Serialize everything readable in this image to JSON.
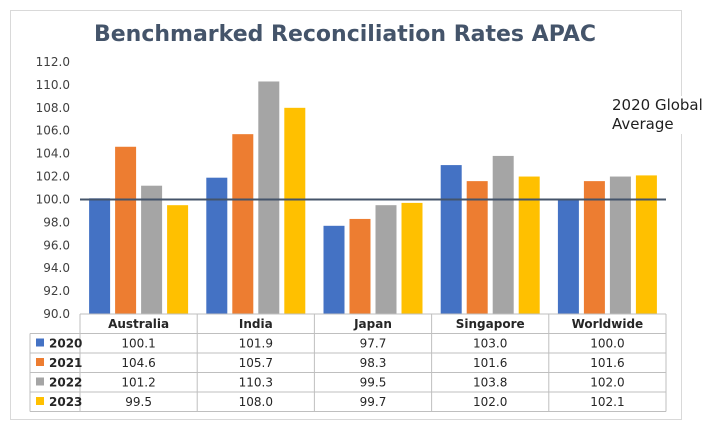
{
  "chart_data": {
    "type": "bar",
    "title": "Benchmarked Reconciliation Rates APAC",
    "categories": [
      "Australia",
      "India",
      "Japan",
      "Singapore",
      "Worldwide"
    ],
    "series": [
      {
        "name": "2020",
        "color": "#4472c4",
        "values": [
          100.1,
          101.9,
          97.7,
          103.0,
          100.0
        ],
        "labels": [
          "100.1",
          "101.9",
          "97.7",
          "103.0",
          "100.0"
        ]
      },
      {
        "name": "2021",
        "color": "#ed7d31",
        "values": [
          104.6,
          105.7,
          98.3,
          101.6,
          101.6
        ],
        "labels": [
          "104.6",
          "105.7",
          "98.3",
          "101.6",
          "101.6"
        ]
      },
      {
        "name": "2022",
        "color": "#a5a5a5",
        "values": [
          101.2,
          110.3,
          99.5,
          103.8,
          102.0
        ],
        "labels": [
          "101.2",
          "110.3",
          "99.5",
          "103.8",
          "102.0"
        ]
      },
      {
        "name": "2023",
        "color": "#ffc000",
        "values": [
          99.5,
          108.0,
          99.7,
          102.0,
          102.1
        ],
        "labels": [
          "99.5",
          "108.0",
          "99.7",
          "102.0",
          "102.1"
        ]
      }
    ],
    "ylim": [
      90,
      112
    ],
    "yticks": [
      "90.0",
      "92.0",
      "94.0",
      "96.0",
      "98.0",
      "100.0",
      "102.0",
      "104.0",
      "106.0",
      "108.0",
      "110.0",
      "112.0"
    ],
    "grid": false,
    "reference_line": {
      "value": 100.0,
      "label_line1": "2020 Global",
      "label_line2": "Average",
      "color": "#44546a"
    },
    "data_table": true
  }
}
